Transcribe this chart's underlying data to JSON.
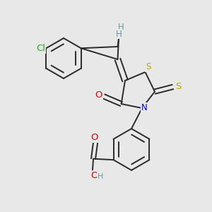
{
  "bg_color": "#e8e8e8",
  "bond_color": "#2a2a2a",
  "bond_lw": 1.4,
  "dbo": 0.012,
  "atom_colors": {
    "H": "#5f9ea0",
    "O": "#dd0000",
    "N": "#0000ee",
    "S": "#bbaa00",
    "Cl": "#22aa22"
  },
  "fs": 8.5
}
